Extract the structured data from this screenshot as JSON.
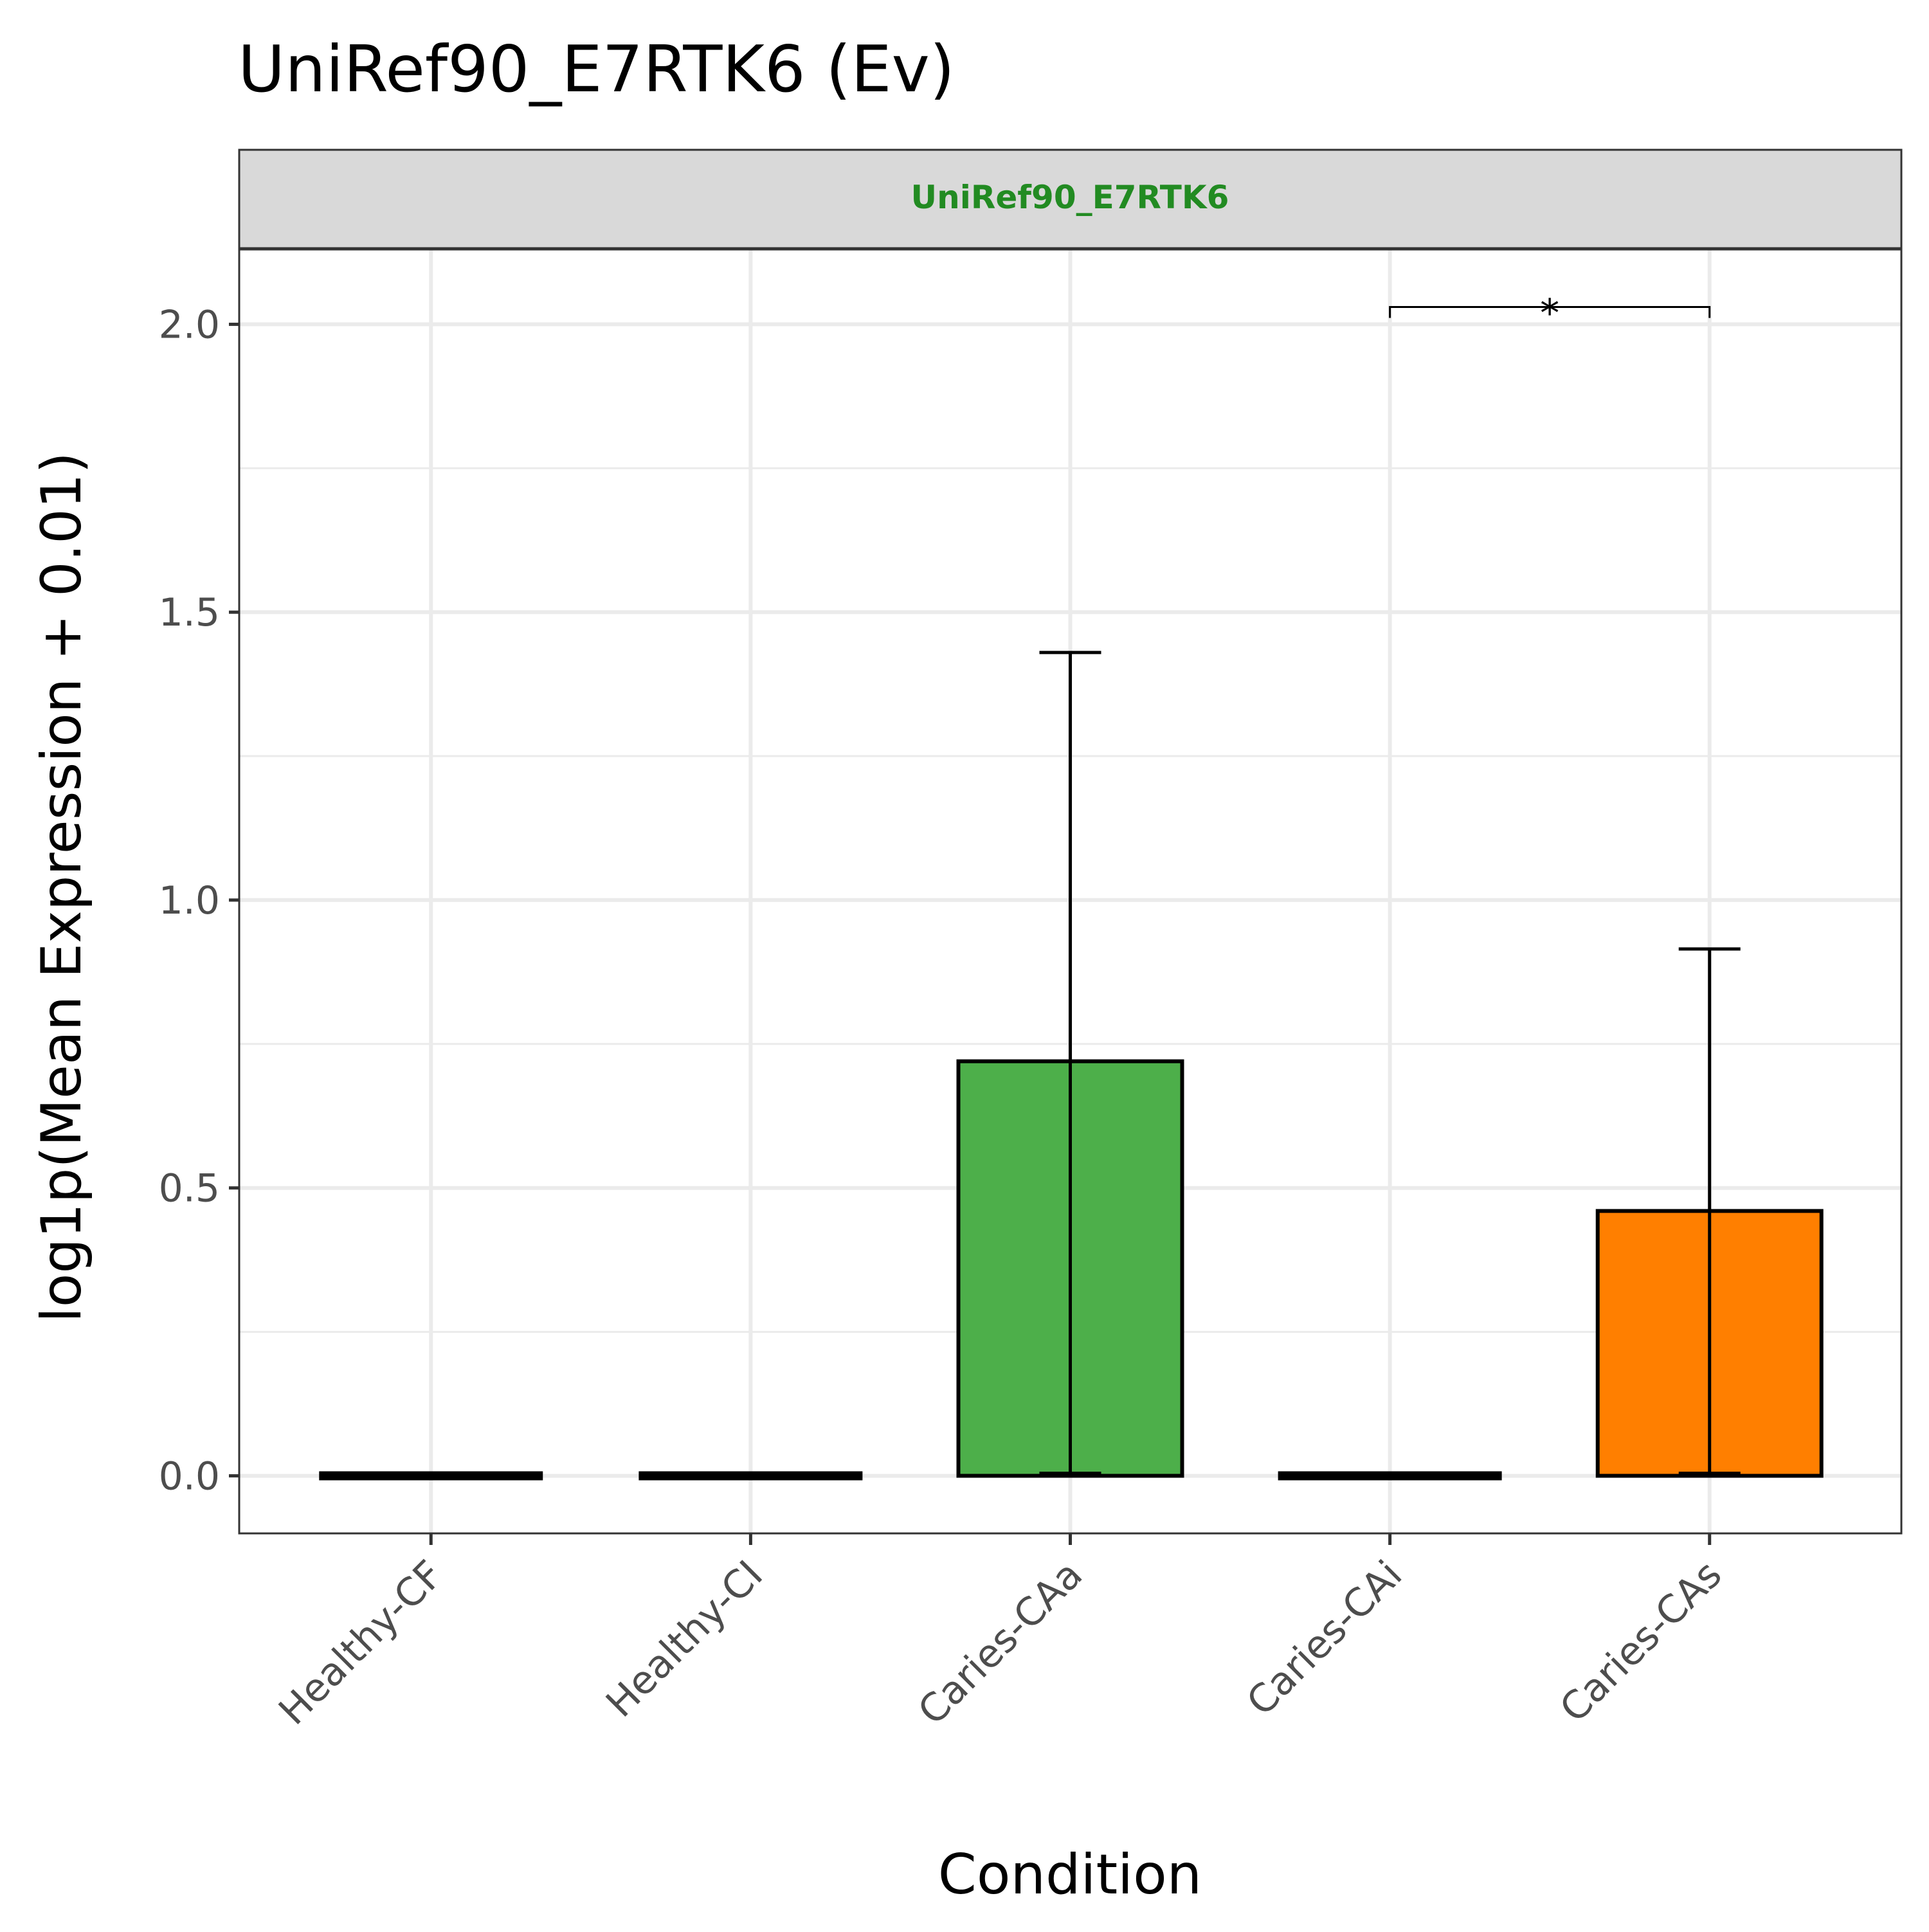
{
  "title": "UniRef90_E7RTK6 (Ev)",
  "facet_label": "UniRef90_E7RTK6",
  "colors": {
    "facet_text": "#228B22",
    "strip_fill": "#d9d9d9",
    "grid": "#ebebeb",
    "bar_outline": "#000000"
  },
  "chart_data": {
    "type": "bar",
    "title": "UniRef90_E7RTK6 (Ev)",
    "xlabel": "Condition",
    "ylabel": "log1p(Mean Expression + 0.01)",
    "categories": [
      "Healthy-CF",
      "Healthy-CI",
      "Caries-CAa",
      "Caries-CAi",
      "Caries-CAs"
    ],
    "values": [
      0.0,
      0.0,
      0.72,
      0.0,
      0.46
    ],
    "error_upper": [
      0.0,
      0.0,
      1.43,
      0.0,
      0.915
    ],
    "error_lower": [
      0.0,
      0.0,
      0.0,
      0.0,
      0.0
    ],
    "bar_colors": [
      "#377EB8",
      "#984EA3",
      "#4DAF4A",
      "#E41A1C",
      "#FF7F00"
    ],
    "ylim": [
      -0.1,
      2.13
    ],
    "yticks": [
      0.0,
      0.5,
      1.0,
      1.5,
      2.0
    ],
    "ytick_labels": [
      "0.0",
      "0.5",
      "1.0",
      "1.5",
      "2.0"
    ],
    "grid": true,
    "legend": "none",
    "significance": [
      {
        "from": "Caries-CAi",
        "to": "Caries-CAs",
        "y": 2.03,
        "label": "*"
      }
    ]
  }
}
